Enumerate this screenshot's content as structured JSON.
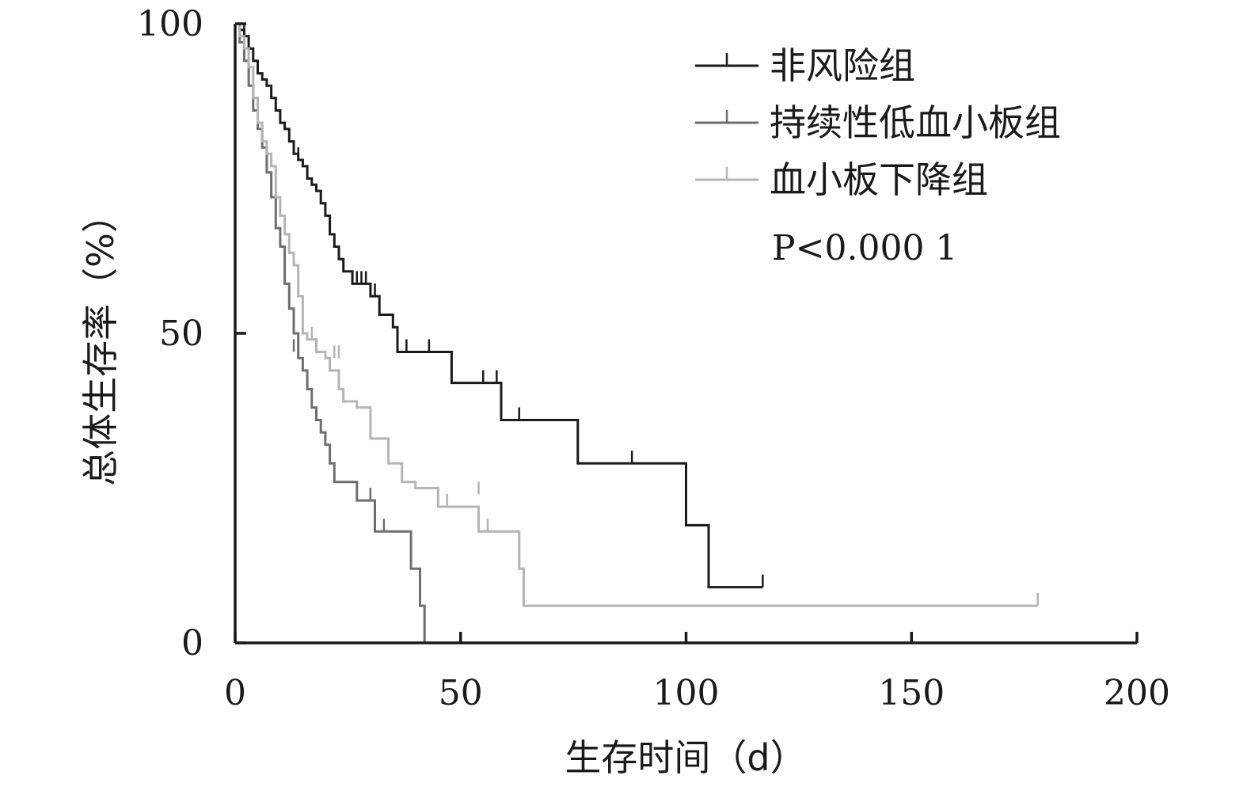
{
  "chart_data": {
    "type": "line",
    "step": "post",
    "xlabel": "生存时间（d）",
    "ylabel": "总体生存率（%）",
    "xlim": [
      0,
      200
    ],
    "ylim": [
      0,
      100
    ],
    "xticks": [
      0,
      50,
      100,
      150,
      200
    ],
    "yticks": [
      0,
      50,
      100
    ],
    "grid": false,
    "legend_position": "top-right",
    "annotation": "P<0.000 1",
    "series": [
      {
        "name": "非风险组",
        "color": "#1a1a1a",
        "points": [
          [
            0,
            100
          ],
          [
            1,
            99
          ],
          [
            2,
            98
          ],
          [
            3,
            96
          ],
          [
            4,
            94
          ],
          [
            5,
            92
          ],
          [
            6,
            91
          ],
          [
            7,
            90
          ],
          [
            8,
            88
          ],
          [
            9,
            86
          ],
          [
            10,
            84
          ],
          [
            11,
            83
          ],
          [
            12,
            81
          ],
          [
            13,
            79
          ],
          [
            14,
            78
          ],
          [
            15,
            77
          ],
          [
            16,
            75
          ],
          [
            17,
            74
          ],
          [
            18,
            73
          ],
          [
            19,
            71
          ],
          [
            20,
            69
          ],
          [
            21,
            66
          ],
          [
            22,
            64
          ],
          [
            23,
            62
          ],
          [
            24,
            60
          ],
          [
            26,
            58
          ],
          [
            30,
            56
          ],
          [
            32,
            53
          ],
          [
            35,
            51
          ],
          [
            36,
            47
          ],
          [
            48,
            42
          ],
          [
            59,
            36
          ],
          [
            76,
            29
          ],
          [
            100,
            19
          ],
          [
            105,
            9
          ],
          [
            117,
            9
          ]
        ],
        "censored": [
          [
            2,
            98
          ],
          [
            14,
            78
          ],
          [
            21,
            66
          ],
          [
            26,
            58
          ],
          [
            27,
            58
          ],
          [
            28,
            58
          ],
          [
            29,
            58
          ],
          [
            31,
            56
          ],
          [
            38,
            47
          ],
          [
            43,
            47
          ],
          [
            55,
            42
          ],
          [
            58,
            42
          ],
          [
            63,
            36
          ],
          [
            88,
            29
          ],
          [
            117,
            9
          ]
        ]
      },
      {
        "name": "持续性低血小板组",
        "color": "#6e6e6e",
        "points": [
          [
            0,
            100
          ],
          [
            1,
            97
          ],
          [
            2,
            94
          ],
          [
            3,
            90
          ],
          [
            4,
            86
          ],
          [
            5,
            83
          ],
          [
            6,
            80
          ],
          [
            7,
            76
          ],
          [
            8,
            72
          ],
          [
            9,
            67
          ],
          [
            10,
            64
          ],
          [
            11,
            58
          ],
          [
            12,
            54
          ],
          [
            13,
            50
          ],
          [
            14,
            46
          ],
          [
            15,
            44
          ],
          [
            16,
            41
          ],
          [
            17,
            38
          ],
          [
            18,
            36
          ],
          [
            19,
            34
          ],
          [
            20,
            32
          ],
          [
            21,
            29
          ],
          [
            22,
            26
          ],
          [
            27,
            23
          ],
          [
            31,
            18
          ],
          [
            39,
            12
          ],
          [
            41,
            6
          ],
          [
            42,
            0
          ]
        ],
        "censored": [
          [
            13,
            47
          ],
          [
            30,
            23
          ],
          [
            33,
            18
          ]
        ]
      },
      {
        "name": "血小板下降组",
        "color": "#b4b4b4",
        "points": [
          [
            0,
            100
          ],
          [
            1,
            98
          ],
          [
            2,
            96
          ],
          [
            3,
            93
          ],
          [
            4,
            88
          ],
          [
            5,
            84
          ],
          [
            6,
            81
          ],
          [
            7,
            79
          ],
          [
            8,
            77
          ],
          [
            9,
            72
          ],
          [
            10,
            69
          ],
          [
            11,
            66
          ],
          [
            12,
            63
          ],
          [
            13,
            61
          ],
          [
            14,
            56
          ],
          [
            15,
            50
          ],
          [
            16,
            49
          ],
          [
            18,
            47
          ],
          [
            20,
            46
          ],
          [
            21,
            44
          ],
          [
            23,
            41
          ],
          [
            24,
            39
          ],
          [
            27,
            38
          ],
          [
            30,
            33
          ],
          [
            34,
            29
          ],
          [
            37,
            26
          ],
          [
            40,
            25
          ],
          [
            45,
            22
          ],
          [
            54,
            18
          ],
          [
            63,
            12
          ],
          [
            64,
            6
          ],
          [
            178,
            6
          ]
        ],
        "censored": [
          [
            17,
            49
          ],
          [
            22,
            46
          ],
          [
            23,
            46
          ],
          [
            47,
            22
          ],
          [
            54,
            24
          ],
          [
            56,
            18
          ],
          [
            178,
            6
          ]
        ]
      }
    ]
  }
}
